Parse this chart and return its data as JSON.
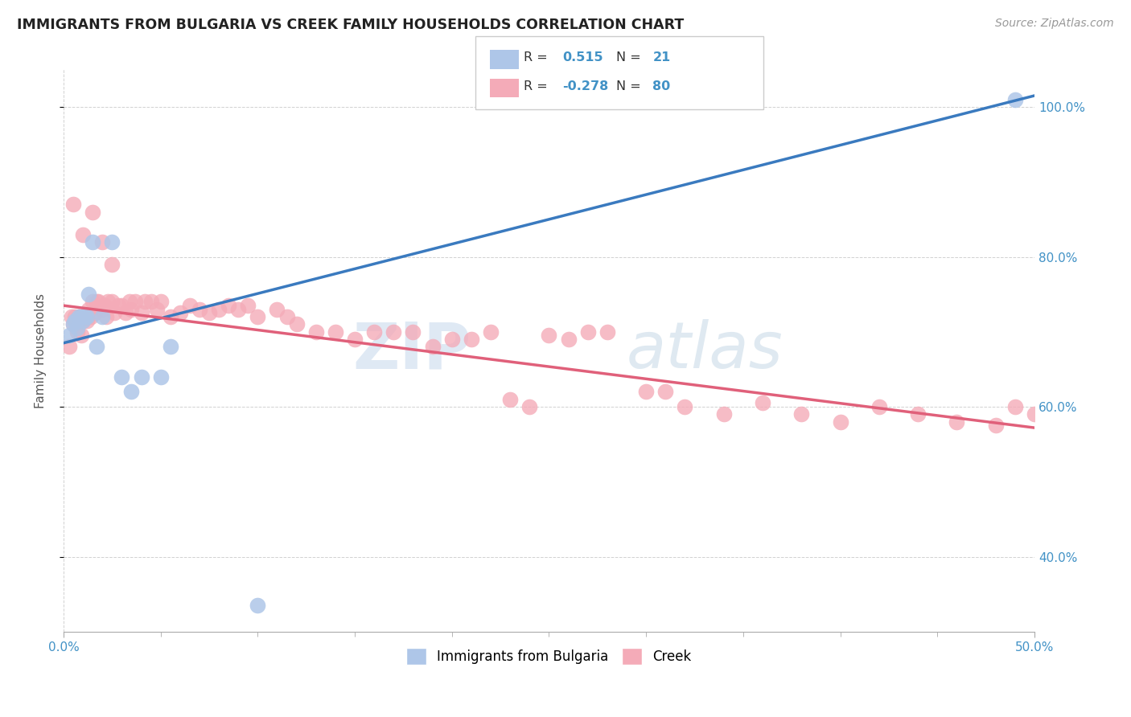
{
  "title": "IMMIGRANTS FROM BULGARIA VS CREEK FAMILY HOUSEHOLDS CORRELATION CHART",
  "source": "Source: ZipAtlas.com",
  "ylabel": "Family Households",
  "xlim": [
    0.0,
    0.5
  ],
  "ylim": [
    0.3,
    1.05
  ],
  "blue_color": "#aec6e8",
  "pink_color": "#f4abb8",
  "line_blue": "#3a7abf",
  "line_pink": "#e0607a",
  "watermark_zip": "ZIP",
  "watermark_atlas": "atlas",
  "blue_line_x0": 0.0,
  "blue_line_y0": 0.685,
  "blue_line_x1": 0.5,
  "blue_line_y1": 1.015,
  "pink_line_x0": 0.0,
  "pink_line_y0": 0.735,
  "pink_line_x1": 0.5,
  "pink_line_y1": 0.572,
  "bulgaria_x": [
    0.003,
    0.005,
    0.006,
    0.007,
    0.008,
    0.009,
    0.01,
    0.011,
    0.012,
    0.013,
    0.015,
    0.017,
    0.02,
    0.025,
    0.03,
    0.035,
    0.04,
    0.05,
    0.055,
    0.1,
    0.49
  ],
  "bulgaria_y": [
    0.695,
    0.71,
    0.715,
    0.705,
    0.72,
    0.72,
    0.715,
    0.72,
    0.72,
    0.75,
    0.82,
    0.68,
    0.72,
    0.82,
    0.64,
    0.62,
    0.64,
    0.64,
    0.68,
    0.335,
    1.01
  ],
  "creek_x": [
    0.003,
    0.004,
    0.005,
    0.006,
    0.007,
    0.008,
    0.009,
    0.01,
    0.011,
    0.012,
    0.013,
    0.014,
    0.015,
    0.016,
    0.017,
    0.018,
    0.02,
    0.021,
    0.022,
    0.023,
    0.025,
    0.026,
    0.028,
    0.03,
    0.032,
    0.034,
    0.035,
    0.037,
    0.04,
    0.042,
    0.045,
    0.048,
    0.05,
    0.055,
    0.06,
    0.065,
    0.07,
    0.075,
    0.08,
    0.085,
    0.09,
    0.095,
    0.1,
    0.11,
    0.115,
    0.12,
    0.13,
    0.14,
    0.15,
    0.16,
    0.17,
    0.18,
    0.19,
    0.2,
    0.21,
    0.22,
    0.23,
    0.24,
    0.25,
    0.26,
    0.27,
    0.28,
    0.3,
    0.31,
    0.32,
    0.34,
    0.36,
    0.38,
    0.4,
    0.42,
    0.44,
    0.46,
    0.48,
    0.49,
    0.5,
    0.005,
    0.01,
    0.015,
    0.02,
    0.025
  ],
  "creek_y": [
    0.68,
    0.72,
    0.71,
    0.72,
    0.7,
    0.72,
    0.695,
    0.715,
    0.72,
    0.715,
    0.73,
    0.72,
    0.74,
    0.725,
    0.74,
    0.74,
    0.73,
    0.735,
    0.72,
    0.74,
    0.74,
    0.725,
    0.735,
    0.735,
    0.725,
    0.74,
    0.73,
    0.74,
    0.725,
    0.74,
    0.74,
    0.73,
    0.74,
    0.72,
    0.725,
    0.735,
    0.73,
    0.725,
    0.73,
    0.735,
    0.73,
    0.735,
    0.72,
    0.73,
    0.72,
    0.71,
    0.7,
    0.7,
    0.69,
    0.7,
    0.7,
    0.7,
    0.68,
    0.69,
    0.69,
    0.7,
    0.61,
    0.6,
    0.695,
    0.69,
    0.7,
    0.7,
    0.62,
    0.62,
    0.6,
    0.59,
    0.605,
    0.59,
    0.58,
    0.6,
    0.59,
    0.58,
    0.575,
    0.6,
    0.59,
    0.87,
    0.83,
    0.86,
    0.82,
    0.79
  ]
}
